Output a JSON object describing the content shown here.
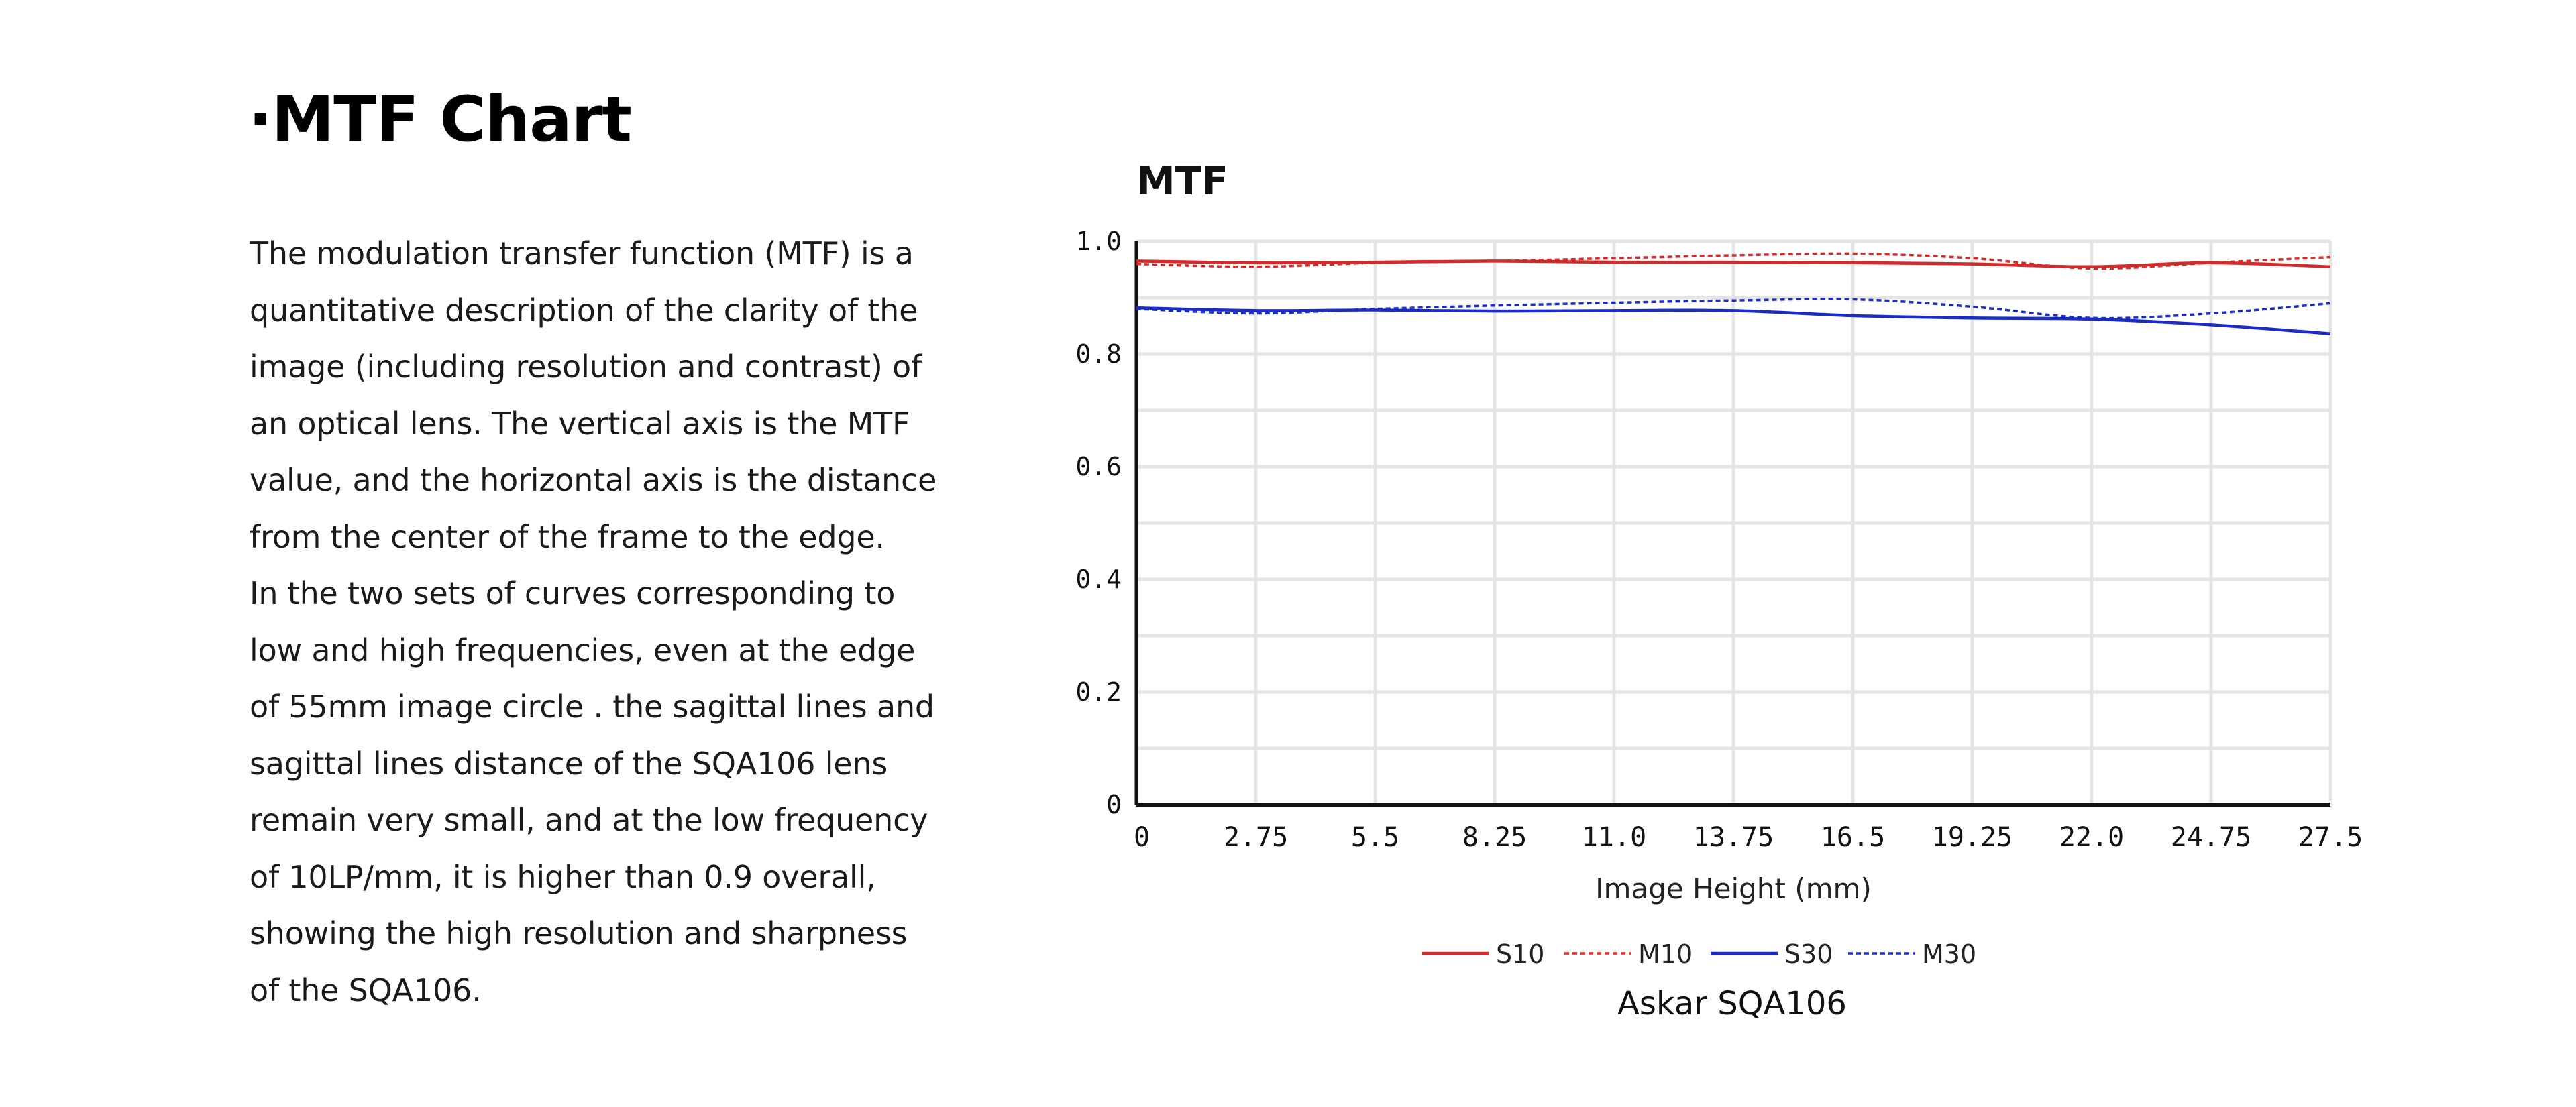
{
  "page": {
    "title": "·MTF Chart",
    "paragraph_lines": [
      "The modulation transfer function (MTF) is a",
      "quantitative description of the clarity of the",
      "image (including resolution and contrast) of",
      "an optical lens. The vertical axis is the MTF",
      "value, and the horizontal axis is the distance",
      "from the center of the frame to the edge.",
      "In the two sets of curves corresponding to",
      "low and high frequencies, even at the edge",
      "of 55mm image circle . the sagittal lines and",
      "sagittal lines distance of the SQA106 lens",
      "remain very small, and at the low frequency",
      "of 10LP/mm, it is higher than 0.9 overall,",
      "showing the high resolution and sharpness",
      "of the SQA106."
    ]
  },
  "chart_data": {
    "type": "line",
    "title": "MTF",
    "xlabel": "Image Height (mm)",
    "ylabel": "",
    "caption": "Askar SQA106",
    "xlim": [
      0,
      27.5
    ],
    "ylim": [
      0,
      1.0
    ],
    "x_ticks": [
      0,
      2.75,
      5.5,
      8.25,
      11.0,
      13.75,
      16.5,
      19.25,
      22.0,
      24.75,
      27.5
    ],
    "x_tick_labels": [
      "0",
      "2.75",
      "5.5",
      "8.25",
      "11.0",
      "13.75",
      "16.5",
      "19.25",
      "22.0",
      "24.75",
      "27.5"
    ],
    "y_ticks": [
      0,
      0.2,
      0.4,
      0.6,
      0.8,
      1.0
    ],
    "y_tick_labels": [
      "0",
      "0.2",
      "0.4",
      "0.6",
      "0.8",
      "1.0"
    ],
    "grid": true,
    "legend_position": "bottom-center",
    "x": [
      0,
      2.75,
      5.5,
      8.25,
      11.0,
      13.75,
      16.5,
      19.25,
      22.0,
      24.75,
      27.5
    ],
    "series": [
      {
        "name": "S10",
        "color": "#d42a2a",
        "dash": "solid",
        "values": [
          0.965,
          0.962,
          0.963,
          0.965,
          0.963,
          0.963,
          0.962,
          0.96,
          0.955,
          0.962,
          0.955
        ]
      },
      {
        "name": "M10",
        "color": "#d42a2a",
        "dash": "dotted",
        "values": [
          0.96,
          0.955,
          0.962,
          0.965,
          0.97,
          0.975,
          0.978,
          0.97,
          0.952,
          0.962,
          0.972
        ]
      },
      {
        "name": "S30",
        "color": "#1a2bc8",
        "dash": "solid",
        "values": [
          0.882,
          0.877,
          0.878,
          0.876,
          0.877,
          0.877,
          0.868,
          0.864,
          0.862,
          0.852,
          0.836
        ]
      },
      {
        "name": "M30",
        "color": "#1a2bc8",
        "dash": "dotted",
        "values": [
          0.88,
          0.872,
          0.88,
          0.886,
          0.891,
          0.895,
          0.897,
          0.884,
          0.864,
          0.872,
          0.89
        ]
      }
    ]
  }
}
